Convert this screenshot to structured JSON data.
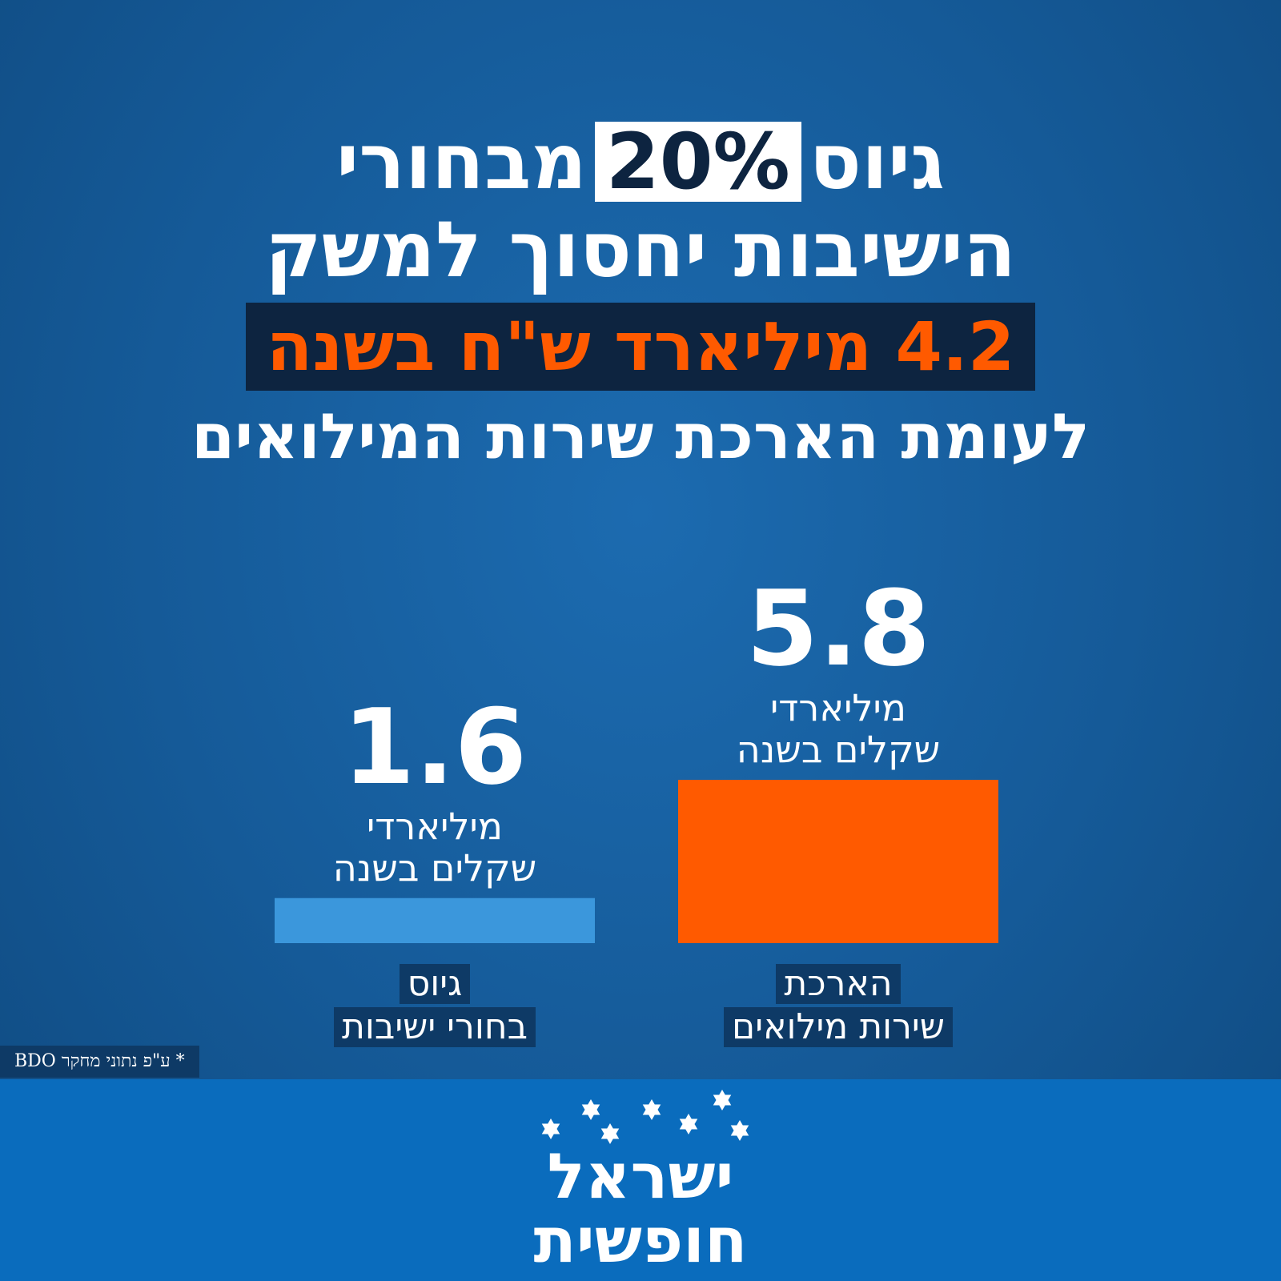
{
  "headline": {
    "line1_start": "גיוס",
    "percent": "20%",
    "line1_end": "מבחורי",
    "line2": "הישיבות יחסוך למשק",
    "amount": "4.2 מיליארד ש\"ח בשנה",
    "line4": "לעומת הארכת שירות המילואים"
  },
  "chart_data": {
    "type": "bar",
    "categories": [
      "גיוס בחורי ישיבות",
      "הארכת שירות מילואים"
    ],
    "category_lines": [
      [
        "גיוס",
        "בחורי ישיבות"
      ],
      [
        "הארכת",
        "שירות מילואים"
      ]
    ],
    "values": [
      1.6,
      5.8
    ],
    "value_labels": [
      "1.6",
      "5.8"
    ],
    "unit_lines": [
      "מיליארדי",
      "שקלים בשנה"
    ],
    "colors": [
      "#3b97dc",
      "#ff5a00"
    ],
    "ylim": [
      0,
      5.8
    ]
  },
  "source_note": "* ע\"פ נתוני מחקר BDO",
  "logo": {
    "line1": "ישראל",
    "line2": "חופשית"
  }
}
